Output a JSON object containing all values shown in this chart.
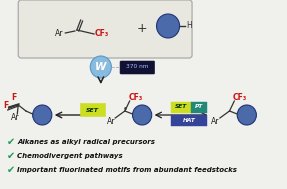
{
  "bg_color": "#f0f0ec",
  "box_facecolor": "#e8e8e0",
  "box_edgecolor": "#aaaaaa",
  "arrow_color": "#222222",
  "blue_ball_color": "#4a6aaa",
  "blue_ball_edge": "#223377",
  "catalyst_ball_color": "#88bbdd",
  "catalyst_ball_edge": "#5599cc",
  "SET_bg": "#ccdd22",
  "SET_text_color": "#003300",
  "PT_bg": "#228877",
  "PT_text_color": "#ffffff",
  "HAT_bg": "#334499",
  "HAT_text_color": "#ffffff",
  "check_color": "#229955",
  "CF3_color": "#cc1111",
  "F_color": "#cc1111",
  "Ar_color": "#222222",
  "bond_color": "#333333",
  "nm_bg": "#111133",
  "nm_text_color": "#aabbff",
  "W_text_color": "#ffffff",
  "check_items": [
    "Alkanes as alkyl radical precursors",
    "Chemodivergent pathways",
    "Important fluorinated motifs from abundant feedstocks"
  ]
}
